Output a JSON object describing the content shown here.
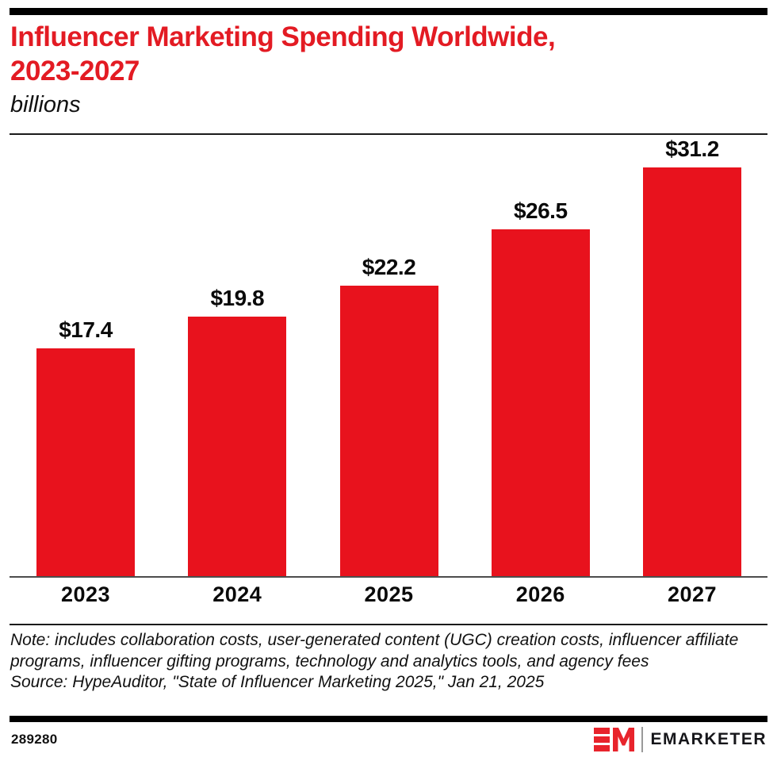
{
  "header": {
    "title_line1": "Influencer Marketing Spending Worldwide,",
    "title_line2": "2023-2027",
    "subtitle": "billions"
  },
  "chart_data": {
    "type": "bar",
    "title": "Influencer Marketing Spending Worldwide, 2023-2027",
    "units": "billions",
    "categories": [
      "2023",
      "2024",
      "2025",
      "2026",
      "2027"
    ],
    "values": [
      17.4,
      19.8,
      22.2,
      26.5,
      31.2
    ],
    "value_labels": [
      "$17.4",
      "$19.8",
      "$22.2",
      "$26.5",
      "$31.2"
    ],
    "ylim": [
      0,
      33.7
    ],
    "grid": false,
    "legend": "none",
    "bar_color": "#e8121d",
    "value_label_color": "#0a0a0a"
  },
  "footnote": {
    "note": "Note: includes collaboration costs, user-generated content (UGC) creation costs, influencer affiliate programs, influencer gifting programs, technology and analytics tools, and agency fees",
    "source": "Source: HypeAuditor, \"State of Influencer Marketing 2025,\" Jan 21, 2025"
  },
  "footer": {
    "chart_id": "289280",
    "brand": "EMARKETER"
  }
}
